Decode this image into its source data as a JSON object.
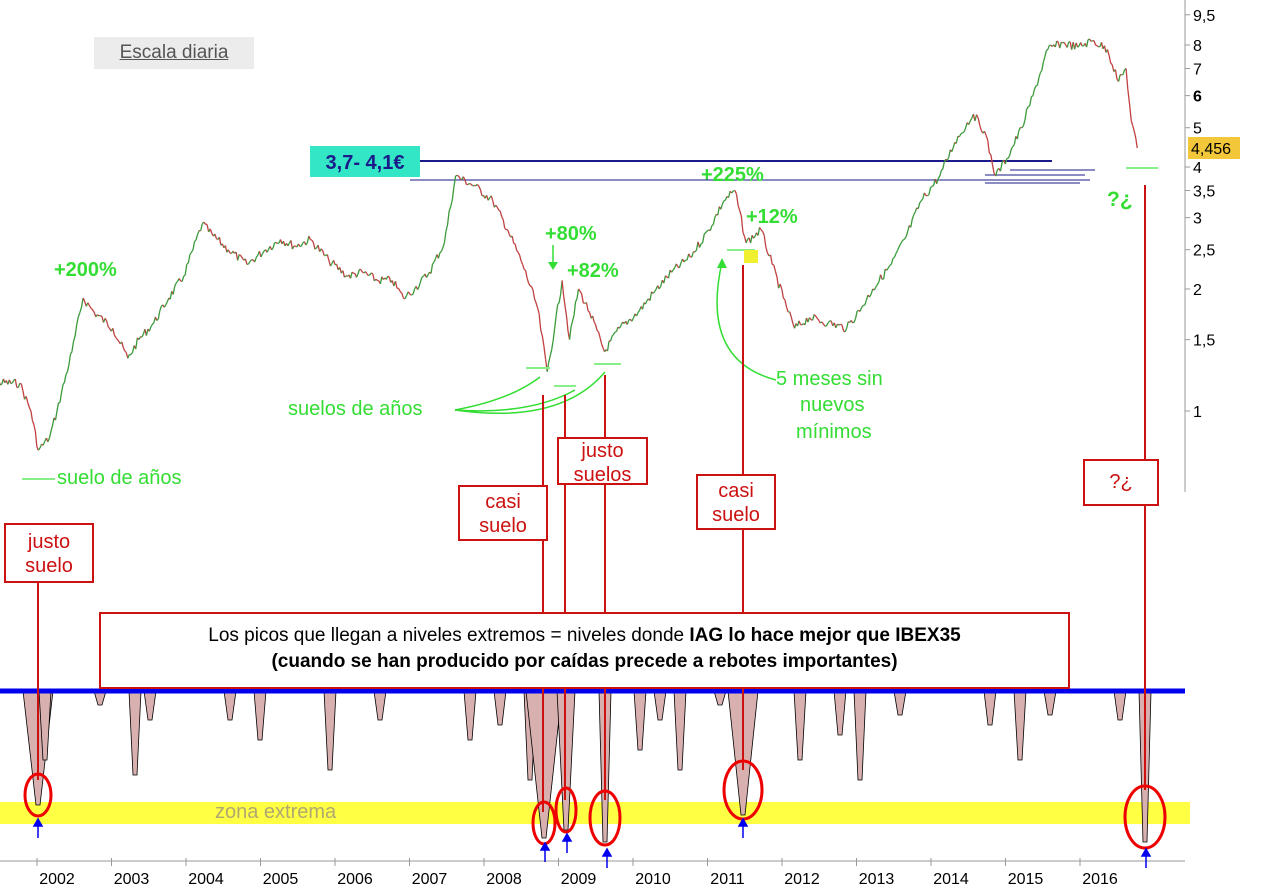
{
  "scale_label": "Escala diaria",
  "note": {
    "line1_prefix": "Los picos que llegan a niveles extremos = niveles donde ",
    "line1_bold": "IAG lo hace mejor que IBEX35",
    "line2": "(cuando se han producido por caídas precede a rebotes importantes)"
  },
  "boxes": {
    "justo_suelo": "justo suelo",
    "casi_suelo_2008": "casi suelo",
    "justo_suelos": "justo suelos",
    "casi_suelo_2011": "casi suelo",
    "question": "?¿"
  },
  "zone_label": "zona extrema",
  "chart_data": {
    "type": "line",
    "y_scale": "log",
    "ylim": [
      0.7,
      9.8
    ],
    "xlim": [
      2001.0,
      2016.75
    ],
    "x_ticks": [
      "2002",
      "2003",
      "2004",
      "2005",
      "2006",
      "2007",
      "2008",
      "2009",
      "2010",
      "2011",
      "2012",
      "2013",
      "2014",
      "2015",
      "2016"
    ],
    "y_ticks": [
      "9,5",
      "8",
      "7",
      "6",
      "5",
      "4",
      "3,5",
      "3",
      "2,5",
      "2",
      "1,5",
      "1"
    ],
    "last_price_label": "4,456",
    "resistance_label": "3,7- 4,1€",
    "price_series": {
      "x": [
        2001.0,
        2001.5,
        2001.65,
        2001.75,
        2001.9,
        2002.0,
        2002.2,
        2002.35,
        2002.5,
        2002.75,
        2002.95,
        2003.1,
        2003.3,
        2003.5,
        2003.7,
        2003.95,
        2004.1,
        2004.3,
        2004.55,
        2004.8,
        2005.0,
        2005.2,
        2005.4,
        2005.65,
        2005.9,
        2006.1,
        2006.3,
        2006.5,
        2006.65,
        2006.8,
        2007.0,
        2007.2,
        2007.35,
        2007.6,
        2007.85,
        2008.05,
        2008.25,
        2008.45,
        2008.58,
        2008.68,
        2008.78,
        2008.88,
        2009.0,
        2009.15,
        2009.35,
        2009.55,
        2009.8,
        2010.0,
        2010.25,
        2010.5,
        2010.75,
        2010.95,
        2011.1,
        2011.25,
        2011.45,
        2011.6,
        2011.75,
        2011.9,
        2012.1,
        2012.35,
        2012.6,
        2012.8,
        2012.95,
        2013.2,
        2013.4,
        2013.6,
        2013.85,
        2014.05,
        2014.3,
        2014.45,
        2014.6,
        2014.75,
        2014.95,
        2015.1,
        2015.3,
        2015.5,
        2015.7,
        2015.9,
        2016.1,
        2016.25,
        2016.35,
        2016.42,
        2016.5
      ],
      "y": [
        1.18,
        1.17,
        1.0,
        0.8,
        0.86,
        1.0,
        1.4,
        1.9,
        1.75,
        1.6,
        1.35,
        1.5,
        1.65,
        1.9,
        2.15,
        2.9,
        2.7,
        2.5,
        2.3,
        2.5,
        2.65,
        2.55,
        2.65,
        2.35,
        2.15,
        2.2,
        2.1,
        2.1,
        1.9,
        2.0,
        2.2,
        2.6,
        3.8,
        3.6,
        3.3,
        2.8,
        2.3,
        1.8,
        1.25,
        1.6,
        2.1,
        1.5,
        2.0,
        1.75,
        1.4,
        1.6,
        1.75,
        1.95,
        2.2,
        2.4,
        2.8,
        3.3,
        3.5,
        2.6,
        2.8,
        2.3,
        1.9,
        1.6,
        1.7,
        1.65,
        1.6,
        1.8,
        2.0,
        2.3,
        2.7,
        3.3,
        3.8,
        4.6,
        5.4,
        4.9,
        3.8,
        4.2,
        5.0,
        6.0,
        7.8,
        8.1,
        7.9,
        8.2,
        7.8,
        6.5,
        7.0,
        5.2,
        4.456
      ]
    },
    "annotations": [
      "+200%",
      "+80%",
      "+82%",
      "+225%",
      "+12%",
      "suelos de años",
      "suelo de años",
      "5 meses sin nuevos mínimos",
      "?¿"
    ]
  },
  "colors": {
    "price_up": "#3a9a3a",
    "price_down": "#c04040",
    "annotation_green": "#33dd33",
    "red": "#cc1111",
    "navy": "#1a1a8a",
    "blue_line": "#0000ee",
    "zone_yellow": "#ffff44",
    "resistance_bg": "#33e6c6",
    "last_price_bg": "#f2c83a"
  }
}
